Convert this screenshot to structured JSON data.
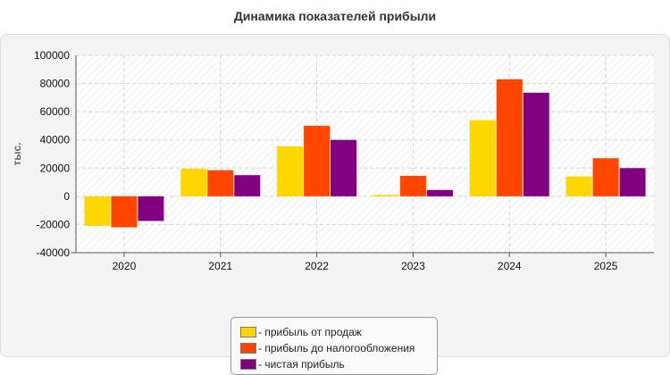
{
  "chart_data": {
    "type": "bar",
    "title": "Динамика показателей прибыли",
    "ylabel": "тыс.",
    "xlabel": "",
    "categories": [
      "2020",
      "2021",
      "2022",
      "2023",
      "2024",
      "2025"
    ],
    "ylim": [
      -40000,
      100000
    ],
    "yticks": [
      100000,
      80000,
      60000,
      40000,
      20000,
      0,
      -20000,
      -40000
    ],
    "grid": true,
    "legend_position": "bottom",
    "series": [
      {
        "name": "- прибыль от продаж",
        "color": "#FFD700",
        "values": [
          -21000,
          19500,
          35500,
          1000,
          54000,
          14000
        ]
      },
      {
        "name": "- прибыль до налогообложения",
        "color": "#FF4500",
        "values": [
          -22000,
          18500,
          50000,
          14500,
          83000,
          27000
        ]
      },
      {
        "name": "- чистая прибыль",
        "color": "#800080",
        "values": [
          -17500,
          15000,
          40000,
          4500,
          73500,
          20000
        ]
      }
    ]
  }
}
